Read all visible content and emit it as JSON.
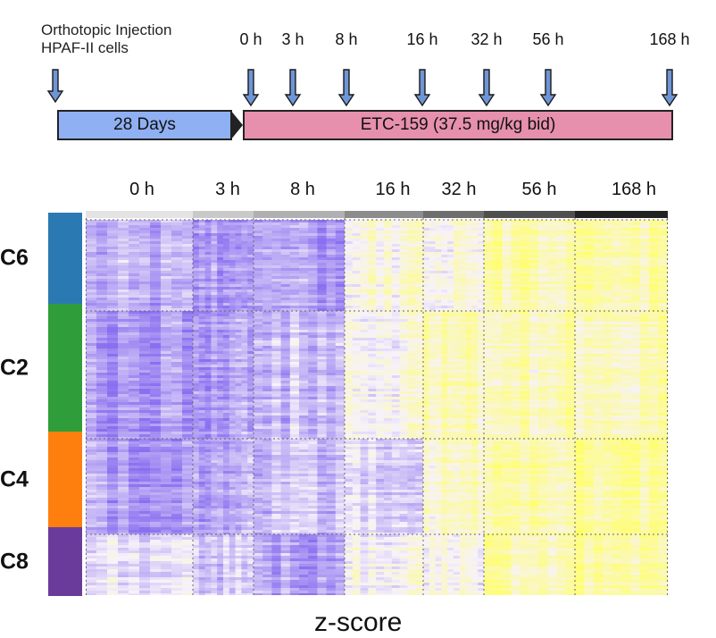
{
  "timeline": {
    "injection_line1": "Orthotopic Injection",
    "injection_line2": "HPAF-II cells",
    "timepoints": [
      "0 h",
      "3 h",
      "8 h",
      "16 h",
      "32 h",
      "56 h",
      "168 h"
    ],
    "days_bar": "28 Days",
    "drug_bar": "ETC-159 (37.5 mg/kg bid)",
    "colors": {
      "days_bar": "#8fb0f2",
      "drug_bar": "#e690ad",
      "arrow": "#6f95d6"
    }
  },
  "heatmap": {
    "columns": [
      "0 h",
      "3 h",
      "8 h",
      "16 h",
      "32 h",
      "56 h",
      "168 h"
    ],
    "clusters": [
      {
        "name": "C6",
        "color": "#2a79b2"
      },
      {
        "name": "C2",
        "color": "#2f9e3a"
      },
      {
        "name": "C4",
        "color": "#ff7f0e"
      },
      {
        "name": "C8",
        "color": "#6b3b9b"
      }
    ],
    "column_greys": [
      "#e4e4e4",
      "#c9c9c9",
      "#b0b0b0",
      "#8c8c8c",
      "#6e6e6e",
      "#4f4f4f",
      "#222222"
    ],
    "colors": {
      "low": "#8a6ff0",
      "mid": "#f7f2fa",
      "high": "#ffff66"
    },
    "scale_label": "z-score"
  }
}
